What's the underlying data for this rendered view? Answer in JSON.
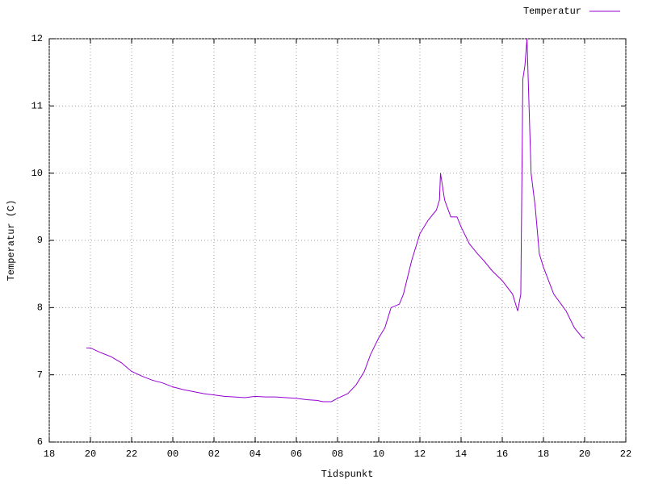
{
  "chart_data": {
    "type": "line",
    "x_label": "Tidspunkt",
    "y_label": "Temperatur (C)",
    "legend": "top-right",
    "grid": true,
    "xlim": [
      18,
      46
    ],
    "ylim": [
      6,
      12
    ],
    "xticks": [
      18,
      20,
      22,
      {
        "value": 24,
        "label": "00"
      },
      {
        "value": 26,
        "label": "02"
      },
      {
        "value": 28,
        "label": "04"
      },
      {
        "value": 30,
        "label": "06"
      },
      {
        "value": 32,
        "label": "08"
      },
      {
        "value": 34,
        "label": "10"
      },
      {
        "value": 36,
        "label": "12"
      },
      {
        "value": 38,
        "label": "14"
      },
      {
        "value": 40,
        "label": "16"
      },
      {
        "value": 42,
        "label": "18"
      },
      {
        "value": 44,
        "label": "20"
      },
      {
        "value": 46,
        "label": "22"
      }
    ],
    "yticks": [
      6,
      7,
      8,
      9,
      10,
      11,
      12
    ],
    "series": [
      {
        "name": "Temperatur",
        "color": "#9400d3",
        "x": [
          19.8,
          20.0,
          20.5,
          21.0,
          21.5,
          22.0,
          22.5,
          23.0,
          23.5,
          24.0,
          24.5,
          25.0,
          25.5,
          26.0,
          26.5,
          27.0,
          27.5,
          28.0,
          28.5,
          29.0,
          29.5,
          30.0,
          30.5,
          31.0,
          31.3,
          31.7,
          32.0,
          32.5,
          32.9,
          33.3,
          33.6,
          34.0,
          34.3,
          34.6,
          35.0,
          35.2,
          35.6,
          36.0,
          36.4,
          36.8,
          36.95,
          37.0,
          37.2,
          37.5,
          37.8,
          38.0,
          38.4,
          38.8,
          39.1,
          39.5,
          40.0,
          40.5,
          40.75,
          40.9,
          41.0,
          41.1,
          41.2,
          41.4,
          41.6,
          41.8,
          42.0,
          42.5,
          43.1,
          43.5,
          43.9,
          44.0
        ],
        "values": [
          7.4,
          7.4,
          7.33,
          7.27,
          7.18,
          7.05,
          6.98,
          6.92,
          6.88,
          6.82,
          6.78,
          6.75,
          6.72,
          6.7,
          6.68,
          6.67,
          6.66,
          6.68,
          6.67,
          6.67,
          6.66,
          6.65,
          6.63,
          6.62,
          6.6,
          6.6,
          6.65,
          6.72,
          6.85,
          7.05,
          7.3,
          7.55,
          7.7,
          8.0,
          8.05,
          8.2,
          8.7,
          9.1,
          9.3,
          9.45,
          9.6,
          10.0,
          9.6,
          9.35,
          9.35,
          9.2,
          8.95,
          8.8,
          8.7,
          8.55,
          8.4,
          8.2,
          7.95,
          8.2,
          11.4,
          11.6,
          12.0,
          10.0,
          9.5,
          8.8,
          8.6,
          8.2,
          7.95,
          7.7,
          7.55,
          7.55
        ]
      }
    ]
  }
}
